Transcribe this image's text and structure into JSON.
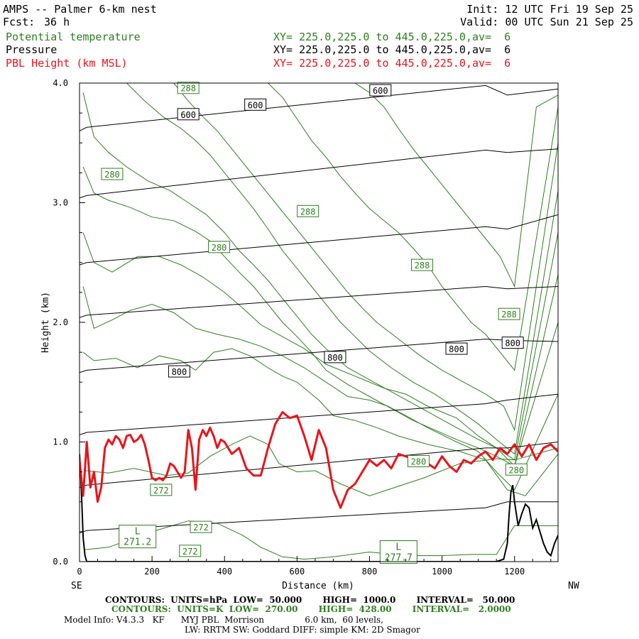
{
  "header": {
    "title": "AMPS -- Palmer 6-km nest",
    "fcst_label": "Fcst:",
    "fcst_value": "36 h",
    "init": "Init: 12 UTC Fri 19 Sep 25",
    "valid": "Valid: 00 UTC Sun 21 Sep 25",
    "fields": [
      {
        "name": "Potential temperature",
        "xy": "XY= 225.0,225.0 to 445.0,225.0,av=  6",
        "color": "#2e7d1f"
      },
      {
        "name": "Pressure",
        "xy": "XY= 225.0,225.0 to 445.0,225.0,av=  6",
        "color": "#000000"
      },
      {
        "name": "PBL Height (km MSL)",
        "xy": "XY= 225.0,225.0 to 445.0,225.0,av=  6",
        "color": "#e8141b"
      }
    ]
  },
  "footer": {
    "contours_pressure": "CONTOURS:  UNITS=hPa  LOW=  50.000       HIGH=  1000.0       INTERVAL=   50.000",
    "contours_theta": "CONTOURS:  UNITS=K  LOW=  270.00       HIGH=  428.00       INTERVAL=   2.0000",
    "model_info_1": "Model Info: V4.3.3   KF      MYJ PBL  Morrison               6.0 km,  60 levels,",
    "model_info_2": "LW: RRTM SW: Goddard DIFF: simple KM: 2D Smagor"
  },
  "chart_data": {
    "type": "line",
    "xlabel": "Distance (km)",
    "ylabel": "Height (km)",
    "xlim": [
      0,
      1320
    ],
    "ylim": [
      0,
      4
    ],
    "x_ticks": [
      0,
      200,
      400,
      600,
      800,
      1000,
      1200
    ],
    "x_tick_labels": [
      "0",
      "200",
      "400",
      "600",
      "800",
      "1000",
      "1200"
    ],
    "y_ticks": [
      0,
      1,
      2,
      3,
      4
    ],
    "y_tick_labels": [
      "0.0",
      "1.0",
      "2.0",
      "3.0",
      "4.0"
    ],
    "x_end_labels": {
      "left": "SE",
      "right": "NW"
    },
    "colors": {
      "theta": "#2e7d1f",
      "pressure": "#000000",
      "pbl": "#e8141b",
      "terrain": "#000000"
    },
    "pressure_contours": [
      {
        "x": [
          0,
          20,
          1120,
          1180,
          1320
        ],
        "y": [
          0.24,
          0.26,
          0.45,
          0.5,
          0.5
        ]
      },
      {
        "x": [
          0,
          20,
          1120,
          1180,
          1320
        ],
        "y": [
          0.62,
          0.64,
          0.95,
          0.95,
          1.0
        ]
      },
      {
        "x": [
          0,
          20,
          1120,
          1180,
          1320
        ],
        "y": [
          1.06,
          1.08,
          1.32,
          1.35,
          1.4
        ]
      },
      {
        "x": [
          0,
          20,
          1120,
          1180,
          1320
        ],
        "y": [
          1.58,
          1.6,
          1.86,
          1.85,
          1.84
        ]
      },
      {
        "x": [
          0,
          20,
          1120,
          1180,
          1320
        ],
        "y": [
          2.04,
          2.06,
          2.3,
          2.28,
          2.3
        ]
      },
      {
        "x": [
          0,
          20,
          1120,
          1180,
          1320
        ],
        "y": [
          2.48,
          2.5,
          2.8,
          2.78,
          2.9
        ]
      },
      {
        "x": [
          0,
          20,
          1120,
          1180,
          1320
        ],
        "y": [
          3.04,
          3.06,
          3.44,
          3.42,
          3.45
        ]
      },
      {
        "x": [
          0,
          20,
          1120,
          1180,
          1320
        ],
        "y": [
          3.6,
          3.63,
          3.98,
          3.9,
          3.95
        ]
      }
    ],
    "pressure_labels": [
      {
        "text": "600",
        "x": 300,
        "y": 3.74
      },
      {
        "text": "600",
        "x": 485,
        "y": 3.82
      },
      {
        "text": "600",
        "x": 830,
        "y": 3.94
      },
      {
        "text": "800",
        "x": 275,
        "y": 1.59
      },
      {
        "text": "800",
        "x": 705,
        "y": 1.71
      },
      {
        "text": "800",
        "x": 1040,
        "y": 1.78
      },
      {
        "text": "800",
        "x": 1195,
        "y": 1.83
      }
    ],
    "theta_contours": [
      {
        "x": [
          15,
          80,
          200,
          300,
          380,
          450,
          500,
          560,
          620,
          700,
          800,
          900,
          1000,
          1080,
          1150,
          1200,
          1320
        ],
        "y": [
          0.1,
          0.12,
          0.25,
          0.34,
          0.32,
          0.22,
          0.12,
          0.04,
          0.02,
          0.04,
          0.08,
          0.05,
          0.05,
          0.06,
          0.06,
          0.3,
          0.3
        ]
      },
      {
        "x": [
          15,
          80,
          150,
          240,
          300,
          360,
          420,
          470,
          520,
          550,
          600,
          650,
          720,
          800,
          850,
          950,
          1050,
          1150,
          1200,
          1320
        ],
        "y": [
          0.76,
          0.74,
          0.78,
          0.72,
          0.74,
          0.88,
          0.98,
          1.05,
          0.98,
          0.82,
          0.75,
          0.76,
          0.65,
          0.55,
          0.6,
          0.7,
          0.82,
          0.86,
          0.85,
          0.95
        ]
      },
      {
        "x": [
          10,
          40,
          100,
          160,
          220,
          280,
          320,
          370,
          420,
          470,
          520,
          560,
          600,
          660,
          700,
          760,
          820,
          880,
          960,
          1050,
          1120,
          1180,
          1230,
          1320
        ],
        "y": [
          1.75,
          1.68,
          1.7,
          1.62,
          1.72,
          1.68,
          1.6,
          1.75,
          1.78,
          1.72,
          1.62,
          1.55,
          1.5,
          1.35,
          1.22,
          1.18,
          1.12,
          1.05,
          0.98,
          0.92,
          0.85,
          0.6,
          0.55,
          0.9
        ]
      },
      {
        "x": [
          10,
          40,
          90,
          140,
          200,
          260,
          320,
          380,
          440,
          500,
          560,
          620,
          680,
          740,
          800,
          850,
          900,
          960,
          1040,
          1100,
          1150,
          1200,
          1320
        ],
        "y": [
          2.3,
          1.95,
          2.02,
          2.1,
          2.15,
          2.08,
          1.95,
          1.9,
          1.86,
          1.8,
          1.72,
          1.62,
          1.5,
          1.38,
          1.35,
          1.3,
          1.22,
          1.12,
          1.0,
          0.92,
          0.75,
          0.6,
          1.4
        ]
      },
      {
        "x": [
          10,
          40,
          90,
          160,
          220,
          280,
          340,
          400,
          450,
          500,
          560,
          620,
          680,
          760,
          840,
          900,
          960,
          1040,
          1100,
          1150,
          1200,
          1320
        ],
        "y": [
          2.75,
          2.5,
          2.42,
          2.55,
          2.55,
          2.48,
          2.38,
          2.25,
          2.12,
          1.98,
          1.88,
          1.78,
          1.65,
          1.55,
          1.45,
          1.4,
          1.3,
          1.2,
          1.05,
          0.95,
          0.8,
          2.0
        ]
      },
      {
        "x": [
          10,
          40,
          80,
          140,
          200,
          260,
          320,
          360,
          400,
          440,
          480,
          520,
          560,
          600,
          640,
          680,
          740,
          800,
          860,
          920,
          980,
          1040,
          1100,
          1150,
          1200,
          1320
        ],
        "y": [
          3.3,
          3.08,
          3.02,
          2.96,
          2.88,
          2.85,
          2.76,
          2.68,
          2.55,
          2.42,
          2.3,
          2.15,
          2.0,
          1.88,
          1.75,
          1.6,
          1.48,
          1.38,
          1.28,
          1.18,
          1.1,
          1.02,
          0.95,
          0.88,
          0.8,
          2.4
        ]
      },
      {
        "x": [
          10,
          40,
          80,
          130,
          190,
          250,
          300,
          350,
          400,
          440,
          480,
          520,
          560,
          600,
          640,
          680,
          740,
          800,
          860,
          920,
          980,
          1040,
          1100,
          1150,
          1200,
          1320
        ],
        "y": [
          3.92,
          3.55,
          3.42,
          3.3,
          3.18,
          3.1,
          3.0,
          2.9,
          2.75,
          2.6,
          2.48,
          2.35,
          2.2,
          2.05,
          1.9,
          1.78,
          1.62,
          1.52,
          1.42,
          1.32,
          1.22,
          1.12,
          1.02,
          0.95,
          0.85,
          2.75
        ]
      },
      {
        "x": [
          130,
          180,
          230,
          280,
          320,
          360,
          400,
          440,
          480,
          520,
          560,
          600,
          640,
          680,
          720,
          760,
          800,
          860,
          920,
          980,
          1040,
          1100,
          1150,
          1200,
          1320
        ],
        "y": [
          4.0,
          3.85,
          3.72,
          3.62,
          3.52,
          3.4,
          3.25,
          3.1,
          2.95,
          2.78,
          2.6,
          2.45,
          2.3,
          2.15,
          2.0,
          1.88,
          1.76,
          1.62,
          1.5,
          1.4,
          1.28,
          1.15,
          1.02,
          0.9,
          3.1
        ]
      },
      {
        "x": [
          260,
          300,
          340,
          380,
          420,
          460,
          500,
          540,
          580,
          620,
          660,
          700,
          740,
          780,
          820,
          880,
          940,
          1000,
          1060,
          1120,
          1170,
          1200,
          1320
        ],
        "y": [
          4.0,
          3.85,
          3.72,
          3.6,
          3.45,
          3.3,
          3.15,
          3.0,
          2.85,
          2.7,
          2.55,
          2.4,
          2.25,
          2.12,
          2.0,
          1.86,
          1.72,
          1.6,
          1.5,
          1.4,
          1.3,
          1.1,
          3.5
        ]
      },
      {
        "x": [
          520,
          560,
          600,
          640,
          680,
          720,
          760,
          800,
          840,
          880,
          920,
          960,
          1000,
          1040,
          1080,
          1120,
          1160,
          1200,
          1320
        ],
        "y": [
          4.0,
          3.88,
          3.7,
          3.52,
          3.38,
          3.22,
          3.08,
          2.95,
          2.85,
          2.75,
          2.62,
          2.48,
          2.3,
          2.15,
          2.0,
          1.9,
          1.75,
          1.6,
          3.8
        ]
      },
      {
        "x": [
          760,
          800,
          840,
          880,
          920,
          960,
          1000,
          1040,
          1080,
          1120,
          1160,
          1200,
          1260,
          1320
        ],
        "y": [
          4.0,
          3.92,
          3.8,
          3.62,
          3.45,
          3.3,
          3.15,
          3.0,
          2.85,
          2.7,
          2.55,
          2.3,
          3.8,
          3.9
        ]
      }
    ],
    "theta_labels": [
      {
        "text": "288",
        "x": 300,
        "y": 3.96
      },
      {
        "text": "280",
        "x": 90,
        "y": 3.24
      },
      {
        "text": "288",
        "x": 630,
        "y": 2.93
      },
      {
        "text": "280",
        "x": 385,
        "y": 2.63
      },
      {
        "text": "288",
        "x": 945,
        "y": 2.48
      },
      {
        "text": "288",
        "x": 1185,
        "y": 2.07
      },
      {
        "text": "272",
        "x": 225,
        "y": 0.6
      },
      {
        "text": "280",
        "x": 935,
        "y": 0.84
      },
      {
        "text": "280",
        "x": 1205,
        "y": 0.77
      },
      {
        "text": "272",
        "x": 335,
        "y": 0.29
      },
      {
        "text": "272",
        "x": 305,
        "y": 0.09
      }
    ],
    "lows": [
      {
        "symbol": "L",
        "value": "271.2",
        "x": 160,
        "y": 0.21
      },
      {
        "symbol": "L",
        "value": "277.7",
        "x": 880,
        "y": 0.08
      }
    ],
    "pbl_height": {
      "x": [
        0,
        10,
        20,
        30,
        40,
        50,
        60,
        70,
        80,
        90,
        100,
        110,
        120,
        130,
        140,
        150,
        160,
        170,
        180,
        190,
        200,
        210,
        220,
        230,
        240,
        250,
        260,
        270,
        280,
        290,
        300,
        310,
        320,
        330,
        340,
        350,
        360,
        370,
        380,
        390,
        400,
        420,
        440,
        460,
        480,
        500,
        520,
        540,
        560,
        580,
        600,
        620,
        640,
        660,
        680,
        700,
        720,
        740,
        760,
        780,
        800,
        820,
        840,
        860,
        880,
        900,
        920,
        940,
        960,
        980,
        1000,
        1020,
        1040,
        1060,
        1080,
        1100,
        1120,
        1140,
        1160,
        1180,
        1200,
        1220,
        1240,
        1260,
        1280,
        1300,
        1320
      ],
      "y": [
        0.85,
        0.55,
        1.0,
        0.62,
        0.75,
        0.5,
        0.62,
        0.95,
        1.02,
        0.98,
        1.05,
        1.02,
        0.95,
        1.05,
        1.06,
        1.0,
        1.02,
        1.06,
        0.98,
        0.85,
        0.7,
        0.68,
        0.7,
        0.68,
        0.72,
        0.82,
        0.8,
        0.75,
        0.7,
        0.75,
        1.1,
        0.95,
        0.6,
        1.02,
        1.1,
        1.05,
        1.12,
        1.05,
        0.95,
        1.02,
        1.0,
        0.9,
        0.95,
        0.78,
        0.72,
        0.72,
        0.95,
        1.15,
        1.25,
        1.2,
        1.22,
        1.05,
        0.85,
        1.1,
        0.95,
        0.6,
        0.45,
        0.6,
        0.65,
        0.75,
        0.85,
        0.8,
        0.85,
        0.78,
        0.9,
        0.88,
        0.85,
        0.88,
        0.82,
        0.78,
        0.88,
        0.8,
        0.75,
        0.85,
        0.82,
        0.88,
        0.92,
        0.85,
        0.95,
        0.9,
        0.98,
        0.88,
        0.98,
        0.85,
        0.95,
        0.98,
        0.92
      ]
    },
    "terrain": {
      "x": [
        0,
        5,
        10,
        15,
        20,
        1150,
        1170,
        1180,
        1185,
        1190,
        1195,
        1200,
        1210,
        1220,
        1230,
        1240,
        1250,
        1260,
        1270,
        1280,
        1290,
        1300,
        1310,
        1320
      ],
      "y": [
        0.9,
        0.6,
        0.2,
        0.05,
        0.0,
        0.0,
        0.02,
        0.15,
        0.4,
        0.58,
        0.64,
        0.5,
        0.3,
        0.4,
        0.48,
        0.45,
        0.28,
        0.35,
        0.25,
        0.15,
        0.08,
        0.05,
        0.15,
        0.22
      ]
    }
  }
}
